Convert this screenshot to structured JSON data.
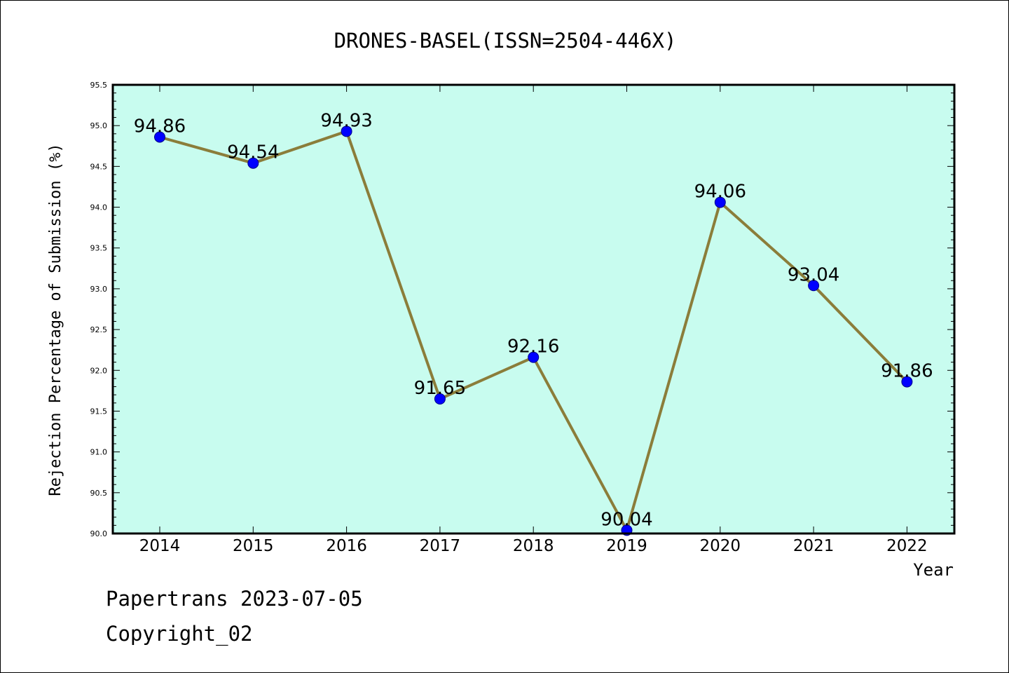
{
  "chart_data": {
    "type": "line",
    "title": "DRONES-BASEL(ISSN=2504-446X)",
    "xlabel": "Year",
    "ylabel": "Rejection Percentage of Submission (%)",
    "categories": [
      "2014",
      "2015",
      "2016",
      "2017",
      "2018",
      "2019",
      "2020",
      "2021",
      "2022"
    ],
    "series": [
      {
        "values": [
          94.86,
          94.54,
          94.93,
          91.65,
          92.16,
          90.04,
          94.06,
          93.04,
          91.86
        ]
      }
    ],
    "data_labels": [
      "94.86",
      "94.54",
      "94.93",
      "91.65",
      "92.16",
      "90.04",
      "94.06",
      "93.04",
      "91.86"
    ],
    "ylim": [
      90.0,
      95.5
    ],
    "yticks": [
      "90.0",
      "90.5",
      "91.0",
      "91.5",
      "92.0",
      "92.5",
      "93.0",
      "93.5",
      "94.0",
      "94.5",
      "95.0",
      "95.5"
    ],
    "grid": false,
    "colors": {
      "plot_background": "#c8fcef",
      "line": "#8b7d3a",
      "marker": "#0000ff"
    }
  },
  "footer": {
    "line1": "Papertrans 2023-07-05",
    "line2": "Copyright_02"
  }
}
